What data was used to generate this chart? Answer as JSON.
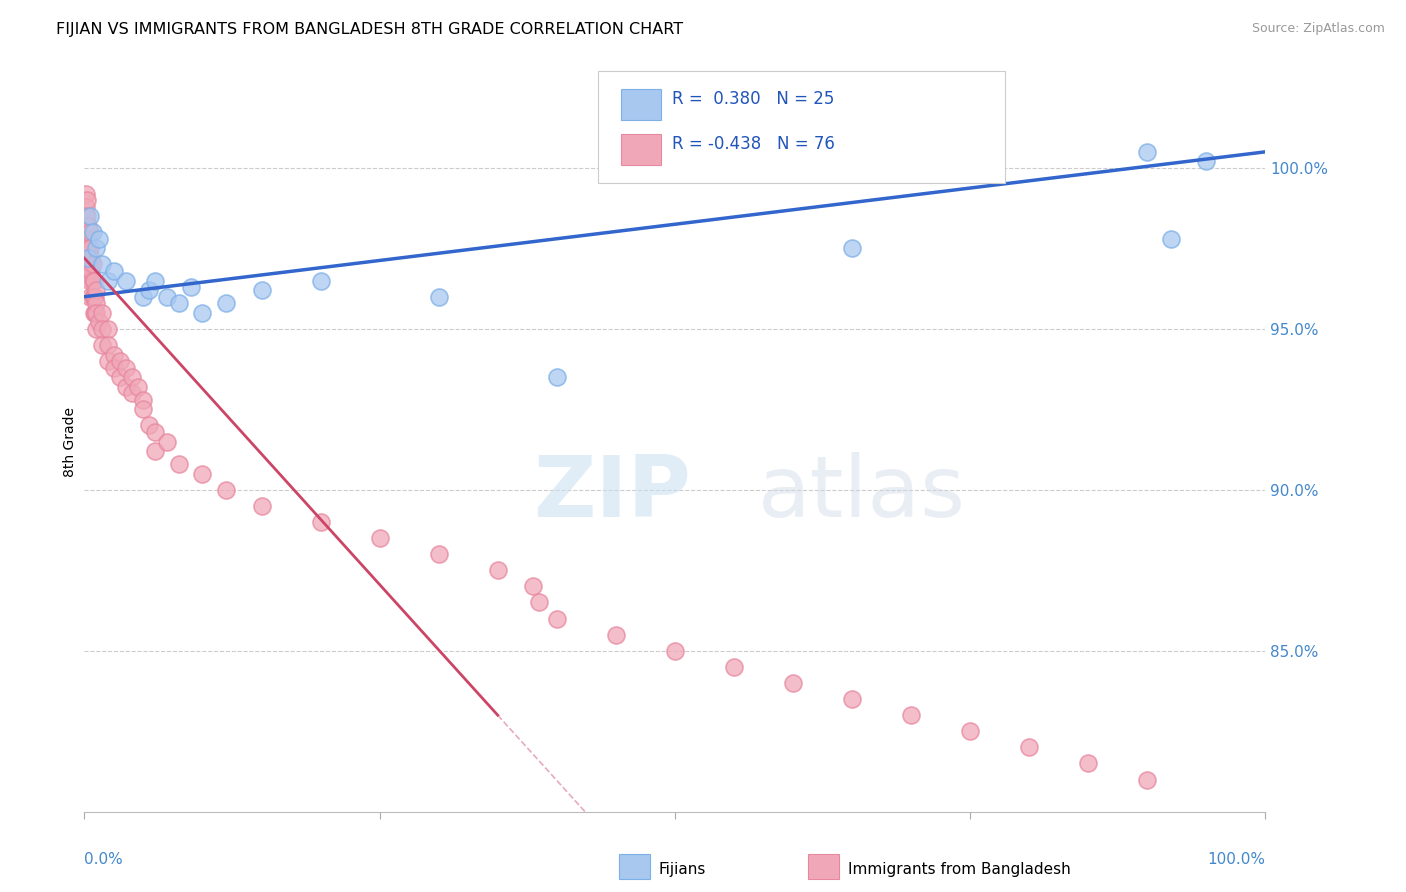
{
  "title": "FIJIAN VS IMMIGRANTS FROM BANGLADESH 8TH GRADE CORRELATION CHART",
  "source": "Source: ZipAtlas.com",
  "ylabel": "8th Grade",
  "watermark_zip": "ZIP",
  "watermark_atlas": "atlas",
  "legend_blue_R": "0.380",
  "legend_blue_N": "25",
  "legend_pink_R": "-0.438",
  "legend_pink_N": "76",
  "legend_label_blue": "Fijians",
  "legend_label_pink": "Immigrants from Bangladesh",
  "blue_color": "#A8C8F0",
  "blue_edge_color": "#7EB0E8",
  "pink_color": "#F0A8B8",
  "pink_edge_color": "#E888A0",
  "blue_line_color": "#3366CC",
  "pink_line_color": "#CC4466",
  "right_yticks": [
    85.0,
    90.0,
    95.0,
    100.0
  ],
  "right_ytick_labels": [
    "85.0%",
    "90.0%",
    "95.0%",
    "100.0%"
  ],
  "blue_scatter_x": [
    0.3,
    0.5,
    0.7,
    1.0,
    1.2,
    1.5,
    2.0,
    2.5,
    3.5,
    5.0,
    5.5,
    6.0,
    7.0,
    8.0,
    9.0,
    10.0,
    12.0,
    15.0,
    20.0,
    30.0,
    40.0,
    65.0,
    90.0,
    92.0,
    95.0
  ],
  "blue_scatter_y": [
    97.2,
    98.5,
    98.0,
    97.5,
    97.8,
    97.0,
    96.5,
    96.8,
    96.5,
    96.0,
    96.2,
    96.5,
    96.0,
    95.8,
    96.3,
    95.5,
    95.8,
    96.2,
    96.5,
    96.0,
    93.5,
    97.5,
    100.5,
    97.8,
    100.2
  ],
  "pink_scatter_x": [
    0.1,
    0.1,
    0.1,
    0.1,
    0.2,
    0.2,
    0.2,
    0.2,
    0.3,
    0.3,
    0.3,
    0.4,
    0.4,
    0.4,
    0.5,
    0.5,
    0.5,
    0.5,
    0.5,
    0.6,
    0.6,
    0.7,
    0.7,
    0.7,
    0.8,
    0.8,
    0.8,
    0.9,
    0.9,
    1.0,
    1.0,
    1.0,
    1.0,
    1.2,
    1.5,
    1.5,
    1.5,
    2.0,
    2.0,
    2.0,
    2.5,
    2.5,
    3.0,
    3.0,
    3.5,
    3.5,
    4.0,
    4.0,
    4.5,
    5.0,
    5.0,
    5.5,
    6.0,
    6.0,
    7.0,
    8.0,
    10.0,
    12.0,
    15.0,
    20.0,
    25.0,
    30.0,
    35.0,
    38.0,
    38.5,
    40.0,
    45.0,
    50.0,
    55.0,
    60.0,
    65.0,
    70.0,
    75.0,
    80.0,
    85.0,
    90.0
  ],
  "pink_scatter_y": [
    99.2,
    98.8,
    98.5,
    97.8,
    99.0,
    98.5,
    97.5,
    97.0,
    98.2,
    97.8,
    97.2,
    97.5,
    97.0,
    96.8,
    98.0,
    97.5,
    97.0,
    96.5,
    96.0,
    97.2,
    96.8,
    97.0,
    96.5,
    96.0,
    96.5,
    96.0,
    95.5,
    96.0,
    95.5,
    96.2,
    95.8,
    95.5,
    95.0,
    95.2,
    95.5,
    95.0,
    94.5,
    95.0,
    94.5,
    94.0,
    94.2,
    93.8,
    94.0,
    93.5,
    93.8,
    93.2,
    93.5,
    93.0,
    93.2,
    92.8,
    92.5,
    92.0,
    91.8,
    91.2,
    91.5,
    90.8,
    90.5,
    90.0,
    89.5,
    89.0,
    88.5,
    88.0,
    87.5,
    87.0,
    86.5,
    86.0,
    85.5,
    85.0,
    84.5,
    84.0,
    83.5,
    83.0,
    82.5,
    82.0,
    81.5,
    81.0
  ],
  "xlim": [
    0,
    100
  ],
  "ylim": [
    80,
    103
  ]
}
